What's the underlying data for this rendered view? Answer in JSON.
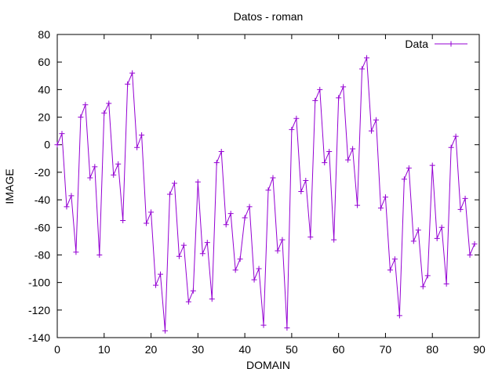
{
  "chart_data": {
    "type": "line",
    "title": "Datos - roman",
    "xlabel": "DOMAIN",
    "ylabel": "IMAGE",
    "xlim": [
      0,
      90
    ],
    "ylim": [
      -140,
      80
    ],
    "x_ticks": [
      "0",
      "10",
      "20",
      "30",
      "40",
      "50",
      "60",
      "70",
      "80",
      "90"
    ],
    "y_ticks": [
      "80",
      "60",
      "40",
      "20",
      "0",
      "-20",
      "-40",
      "-60",
      "-80",
      "-100",
      "-120",
      "-140"
    ],
    "grid": false,
    "legend_position": "top-right",
    "series": [
      {
        "name": "Data",
        "color": "#9400d3",
        "marker": "plus",
        "x": [
          0,
          1,
          2,
          3,
          4,
          5,
          6,
          7,
          8,
          9,
          10,
          11,
          12,
          13,
          14,
          15,
          16,
          17,
          18,
          19,
          20,
          21,
          22,
          23,
          24,
          25,
          26,
          27,
          28,
          29,
          30,
          31,
          32,
          33,
          34,
          35,
          36,
          37,
          38,
          39,
          40,
          41,
          42,
          43,
          44,
          45,
          46,
          47,
          48,
          49,
          50,
          51,
          52,
          53,
          54,
          55,
          56,
          57,
          58,
          59,
          60,
          61,
          62,
          63,
          64,
          65,
          66,
          67,
          68,
          69,
          70,
          71,
          72,
          73,
          74,
          75,
          76,
          77,
          78,
          79,
          80,
          81,
          82,
          83,
          84,
          85,
          86,
          87,
          88,
          89
        ],
        "y": [
          0,
          8,
          -45,
          -37,
          -78,
          20,
          29,
          -24,
          -16,
          -80,
          23,
          30,
          -22,
          -14,
          -55,
          44,
          52,
          -2,
          7,
          -57,
          -49,
          -102,
          -94,
          -135,
          -36,
          -28,
          -81,
          -73,
          -114,
          -106,
          -27,
          -79,
          -71,
          -112,
          -13,
          -5,
          -58,
          -50,
          -91,
          -83,
          -53,
          -45,
          -98,
          -90,
          -131,
          -33,
          -24,
          -77,
          -69,
          -133,
          11,
          19,
          -34,
          -26,
          -67,
          32,
          40,
          -13,
          -5,
          -69,
          34,
          42,
          -11,
          -3,
          -44,
          55,
          63,
          10,
          18,
          -46,
          -38,
          -91,
          -83,
          -124,
          -25,
          -17,
          -70,
          -62,
          -103,
          -95,
          -15,
          -68,
          -60,
          -101,
          -2,
          6,
          -47,
          -39,
          -80,
          -72
        ]
      }
    ]
  }
}
